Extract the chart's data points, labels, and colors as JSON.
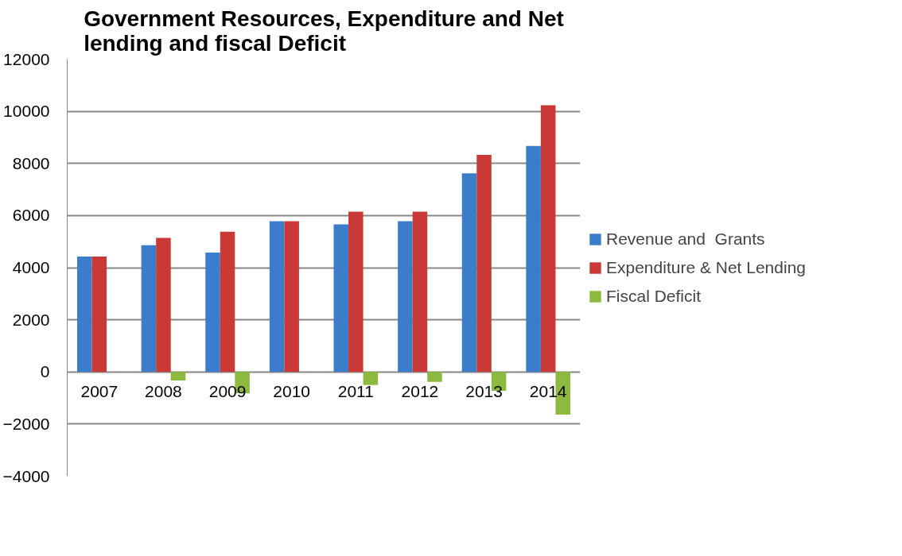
{
  "chart_data": {
    "type": "bar",
    "title": "Government Resources, Expenditure and Net lending and fiscal Deficit",
    "categories": [
      "2007",
      "2008",
      "2009",
      "2010",
      "2011",
      "2012",
      "2013",
      "2014"
    ],
    "series": [
      {
        "name": "Revenue and  Grants",
        "color": "#3c7dcb",
        "values": [
          4430,
          4860,
          4580,
          5780,
          5660,
          5780,
          7620,
          8670
        ]
      },
      {
        "name": "Expenditure & Net Lending",
        "color": "#c93a36",
        "values": [
          4430,
          5140,
          5380,
          5780,
          6150,
          6150,
          8330,
          10230
        ]
      },
      {
        "name": "Fiscal Deficit",
        "color": "#8db93e",
        "values": [
          0,
          -330,
          -820,
          0,
          -500,
          -380,
          -720,
          -1640
        ]
      }
    ],
    "ylim": [
      -4000,
      12000
    ],
    "yticks": [
      -4000,
      -2000,
      0,
      2000,
      4000,
      6000,
      8000,
      10000,
      12000
    ],
    "grid": "y",
    "legend": "right"
  }
}
